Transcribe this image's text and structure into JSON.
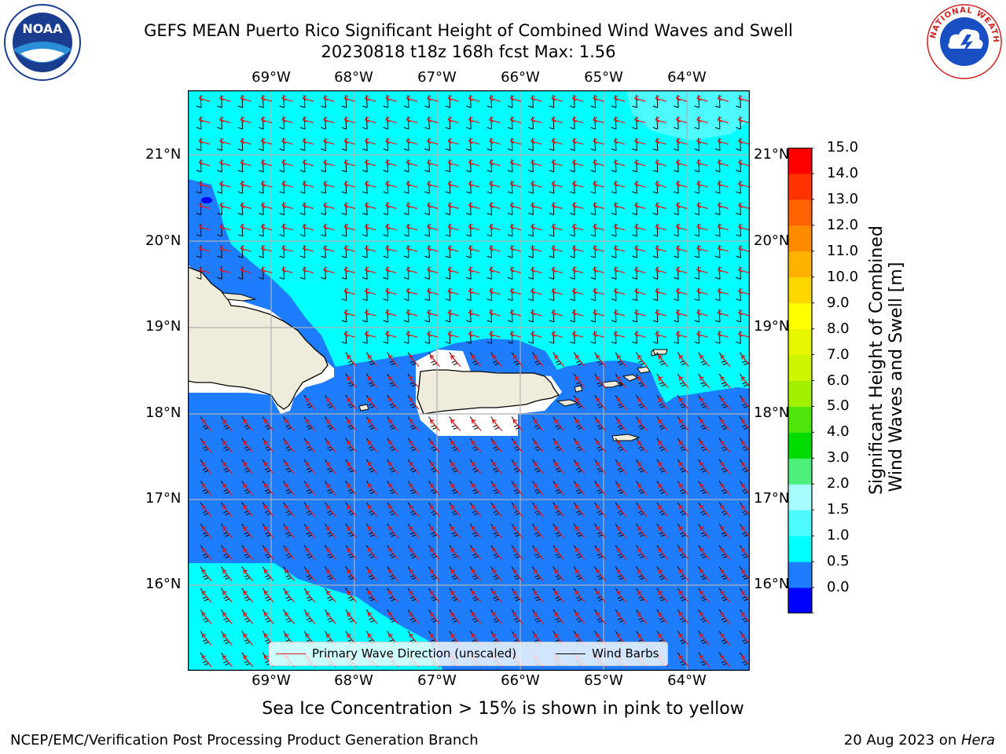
{
  "title": {
    "line1": "GEFS MEAN Puerto Rico Significant Height of Combined Wind Waves and Swell",
    "line2": "20230818 t18z 168h fcst   Max: 1.56"
  },
  "logos": {
    "left_text": "NOAA",
    "right_text": "NATIONAL WEATHER SERVICE"
  },
  "map": {
    "lon_ticks": [
      "69°W",
      "68°W",
      "67°W",
      "66°W",
      "65°W",
      "64°W"
    ],
    "lat_ticks": [
      "21°N",
      "20°N",
      "19°N",
      "18°N",
      "17°N",
      "16°N"
    ],
    "colors": {
      "land": "#efecdc",
      "white_gap": "#ffffff",
      "band_0_0_5": "#0000ff",
      "band_0_5_1": "#1e7cff",
      "band_1_1_5": "#00ffff",
      "band_1_5_2": "#4dfbff",
      "wave_arrow": "#e31a1c",
      "wind_barb": "#000000",
      "grid": "#b0b0b0"
    }
  },
  "legend": {
    "wave_label": "Primary Wave Direction (unscaled)",
    "barb_label": "Wind Barbs"
  },
  "colorbar": {
    "label_line1": "Significant Height of Combined",
    "label_line2": "Wind Waves and Swell [m]",
    "ticks": [
      "15.0",
      "14.0",
      "13.0",
      "12.0",
      "11.0",
      "10.0",
      "9.0",
      "8.0",
      "7.0",
      "6.0",
      "5.0",
      "4.0",
      "3.0",
      "2.0",
      "1.5",
      "1.0",
      "0.5",
      "0.0"
    ],
    "colors": [
      "#0000ff",
      "#1e7cff",
      "#00ffff",
      "#4dfbff",
      "#a6fdff",
      "#4cf07a",
      "#00dc00",
      "#4ee60a",
      "#a0f000",
      "#cdf500",
      "#e6f500",
      "#ffff00",
      "#ffd700",
      "#ffb300",
      "#ff8c00",
      "#ff6200",
      "#ff3300",
      "#ff0000"
    ]
  },
  "footer": {
    "note": "Sea Ice Concentration > 15% is shown in pink to yellow",
    "left": "NCEP/EMC/Verification Post Processing Product Generation Branch",
    "right_prefix": "20 Aug 2023 on ",
    "right_host": "Hera"
  }
}
